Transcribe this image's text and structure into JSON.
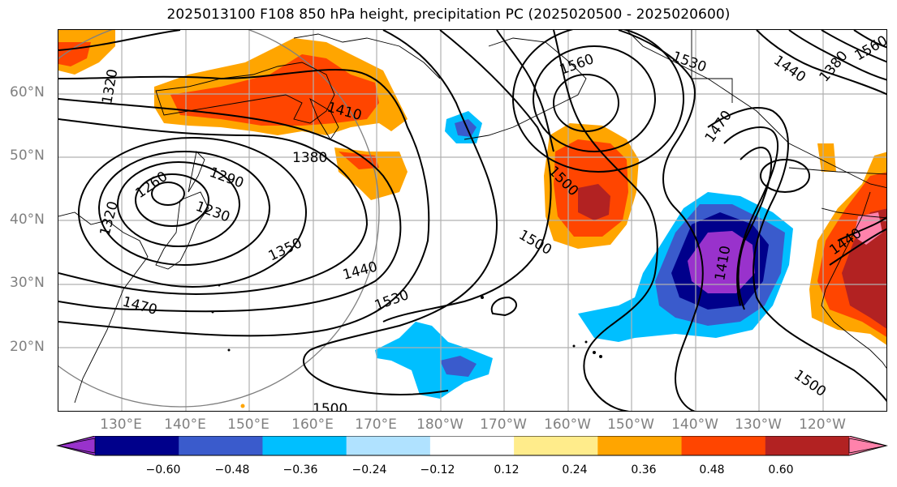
{
  "title": "2025013100 F108 850 hPa height, precipitation PC (2025020500 - 2025020600)",
  "lat_labels": [
    "60°N",
    "50°N",
    "40°N",
    "30°N",
    "20°N"
  ],
  "lon_labels": [
    "130°E",
    "140°E",
    "150°E",
    "160°E",
    "170°E",
    "180°W",
    "170°W",
    "160°W",
    "150°W",
    "140°W",
    "130°W",
    "120°W"
  ],
  "colorbar": {
    "ticks": [
      "−0.60",
      "−0.48",
      "−0.36",
      "−0.24",
      "−0.12",
      "0.12",
      "0.24",
      "0.36",
      "0.48",
      "0.60"
    ],
    "colors": [
      "#9932cc",
      "#00008b",
      "#3a5bcc",
      "#00bfff",
      "#b0e2ff",
      "#ffffff",
      "#ffec8b",
      "#ffa500",
      "#ff4500",
      "#b22222",
      "#ff82ab"
    ]
  },
  "contour_labels": [
    "1320",
    "1410",
    "1380",
    "1260",
    "1290",
    "1230",
    "1320",
    "1350",
    "1440",
    "1470",
    "1530",
    "1500",
    "1500",
    "1560",
    "1530",
    "1500",
    "1470",
    "1410",
    "1440",
    "1500",
    "1440",
    "1380",
    "1560"
  ]
}
